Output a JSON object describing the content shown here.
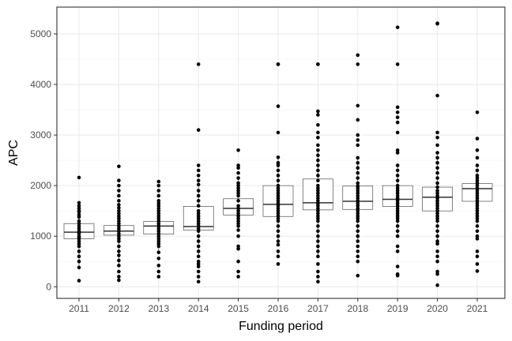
{
  "chart_data": {
    "type": "box",
    "xlabel": "Funding period",
    "ylabel": "APC",
    "ylim": [
      -230,
      5530
    ],
    "y_ticks": [
      0,
      1000,
      2000,
      3000,
      4000,
      5000
    ],
    "grid": true,
    "colors": {
      "box_fill": "#ffffff",
      "box_line": "#333333",
      "points": "#000000",
      "grid_major": "#ebebeb",
      "grid_minor": "#f5f5f5",
      "panel_border": "#333333"
    },
    "categories": [
      "2011",
      "2012",
      "2013",
      "2014",
      "2015",
      "2016",
      "2017",
      "2018",
      "2019",
      "2020",
      "2021"
    ],
    "boxes": [
      {
        "category": "2011",
        "q1": 950,
        "median": 1080,
        "q3": 1250,
        "whisker_low": 380,
        "whisker_high": 1660,
        "points": [
          2160,
          1660,
          1600,
          1550,
          1500,
          1480,
          1420,
          1380,
          1300,
          1250,
          1200,
          1150,
          1100,
          1080,
          1050,
          1000,
          980,
          950,
          900,
          850,
          800,
          700,
          600,
          500,
          380,
          120
        ]
      },
      {
        "category": "2012",
        "q1": 1020,
        "median": 1100,
        "q3": 1210,
        "whisker_low": 420,
        "whisker_high": 1560,
        "points": [
          2380,
          2100,
          2000,
          1900,
          1800,
          1700,
          1620,
          1560,
          1500,
          1450,
          1400,
          1350,
          1300,
          1250,
          1200,
          1150,
          1100,
          1050,
          1000,
          950,
          900,
          800,
          700,
          620,
          520,
          420,
          300,
          200,
          130
        ]
      },
      {
        "category": "2013",
        "q1": 1040,
        "median": 1200,
        "q3": 1290,
        "whisker_low": 680,
        "whisker_high": 1650,
        "points": [
          2080,
          2000,
          1900,
          1800,
          1700,
          1650,
          1600,
          1550,
          1500,
          1450,
          1400,
          1350,
          1300,
          1250,
          1200,
          1150,
          1100,
          1050,
          1000,
          950,
          900,
          850,
          800,
          680,
          560,
          420,
          300,
          200
        ]
      },
      {
        "category": "2014",
        "q1": 1120,
        "median": 1190,
        "q3": 1590,
        "whisker_low": 580,
        "whisker_high": 2020,
        "points": [
          4400,
          3100,
          2400,
          2300,
          2200,
          2100,
          2020,
          1900,
          1800,
          1700,
          1600,
          1500,
          1450,
          1400,
          1350,
          1300,
          1250,
          1200,
          1150,
          1100,
          1000,
          900,
          800,
          700,
          600,
          500,
          450,
          400,
          300,
          200,
          100
        ]
      },
      {
        "category": "2015",
        "q1": 1420,
        "median": 1550,
        "q3": 1740,
        "whisker_low": 1120,
        "whisker_high": 2150,
        "points": [
          2700,
          2400,
          2350,
          2250,
          2150,
          2050,
          2000,
          1950,
          1900,
          1850,
          1800,
          1700,
          1600,
          1550,
          1500,
          1450,
          1400,
          1350,
          1300,
          1250,
          1200,
          1120,
          1000,
          800,
          750,
          500,
          300,
          200
        ]
      },
      {
        "category": "2016",
        "q1": 1390,
        "median": 1630,
        "q3": 2000,
        "whisker_low": 830,
        "whisker_high": 2560,
        "points": [
          4400,
          4400,
          3570,
          3050,
          2560,
          2450,
          2400,
          2300,
          2200,
          2100,
          2000,
          1950,
          1900,
          1850,
          1800,
          1750,
          1700,
          1650,
          1600,
          1550,
          1500,
          1450,
          1400,
          1350,
          1300,
          1200,
          1100,
          1000,
          900,
          830,
          700,
          600,
          450
        ]
      },
      {
        "category": "2017",
        "q1": 1520,
        "median": 1660,
        "q3": 2130,
        "whisker_low": 600,
        "whisker_high": 2700,
        "points": [
          4400,
          4400,
          3470,
          3400,
          3200,
          3050,
          2950,
          2800,
          2700,
          2600,
          2500,
          2400,
          2300,
          2200,
          2100,
          2000,
          1950,
          1900,
          1850,
          1800,
          1750,
          1700,
          1650,
          1600,
          1550,
          1500,
          1450,
          1400,
          1350,
          1300,
          1200,
          1100,
          1000,
          900,
          800,
          700,
          600,
          450,
          300,
          200,
          100
        ]
      },
      {
        "category": "2018",
        "q1": 1530,
        "median": 1690,
        "q3": 1990,
        "whisker_low": 900,
        "whisker_high": 2550,
        "points": [
          4580,
          4400,
          3580,
          3300,
          3000,
          2900,
          2800,
          2550,
          2450,
          2350,
          2250,
          2150,
          2050,
          1990,
          1950,
          1900,
          1850,
          1800,
          1750,
          1700,
          1650,
          1600,
          1550,
          1500,
          1450,
          1400,
          1350,
          1300,
          1200,
          1100,
          1000,
          900,
          800,
          700,
          600,
          500,
          220
        ]
      },
      {
        "category": "2019",
        "q1": 1590,
        "median": 1730,
        "q3": 2000,
        "whisker_low": 1000,
        "whisker_high": 2400,
        "points": [
          5130,
          4400,
          3550,
          3450,
          3350,
          3250,
          3050,
          2700,
          2650,
          2400,
          2300,
          2200,
          2100,
          2000,
          1950,
          1900,
          1850,
          1800,
          1750,
          1700,
          1650,
          1600,
          1550,
          1500,
          1450,
          1400,
          1350,
          1300,
          1200,
          1100,
          1000,
          800,
          700,
          400,
          250,
          220
        ]
      },
      {
        "category": "2020",
        "q1": 1500,
        "median": 1770,
        "q3": 1970,
        "whisker_low": 850,
        "whisker_high": 2650,
        "points": [
          5210,
          5200,
          3780,
          3050,
          2950,
          2800,
          2650,
          2550,
          2450,
          2350,
          2250,
          2150,
          2050,
          1970,
          1900,
          1850,
          1800,
          1750,
          1700,
          1650,
          1600,
          1550,
          1500,
          1450,
          1400,
          1350,
          1300,
          1200,
          1100,
          1000,
          900,
          850,
          700,
          600,
          500,
          300,
          250,
          30
        ]
      },
      {
        "category": "2021",
        "q1": 1690,
        "median": 1940,
        "q3": 2040,
        "whisker_low": 1200,
        "whisker_high": 2400,
        "points": [
          3450,
          2930,
          2700,
          2550,
          2400,
          2300,
          2200,
          2150,
          2100,
          2050,
          2000,
          1950,
          1900,
          1850,
          1800,
          1750,
          1700,
          1650,
          1600,
          1550,
          1500,
          1450,
          1400,
          1350,
          1300,
          1200,
          1100,
          1000,
          950,
          700,
          600,
          450,
          310
        ]
      }
    ]
  }
}
